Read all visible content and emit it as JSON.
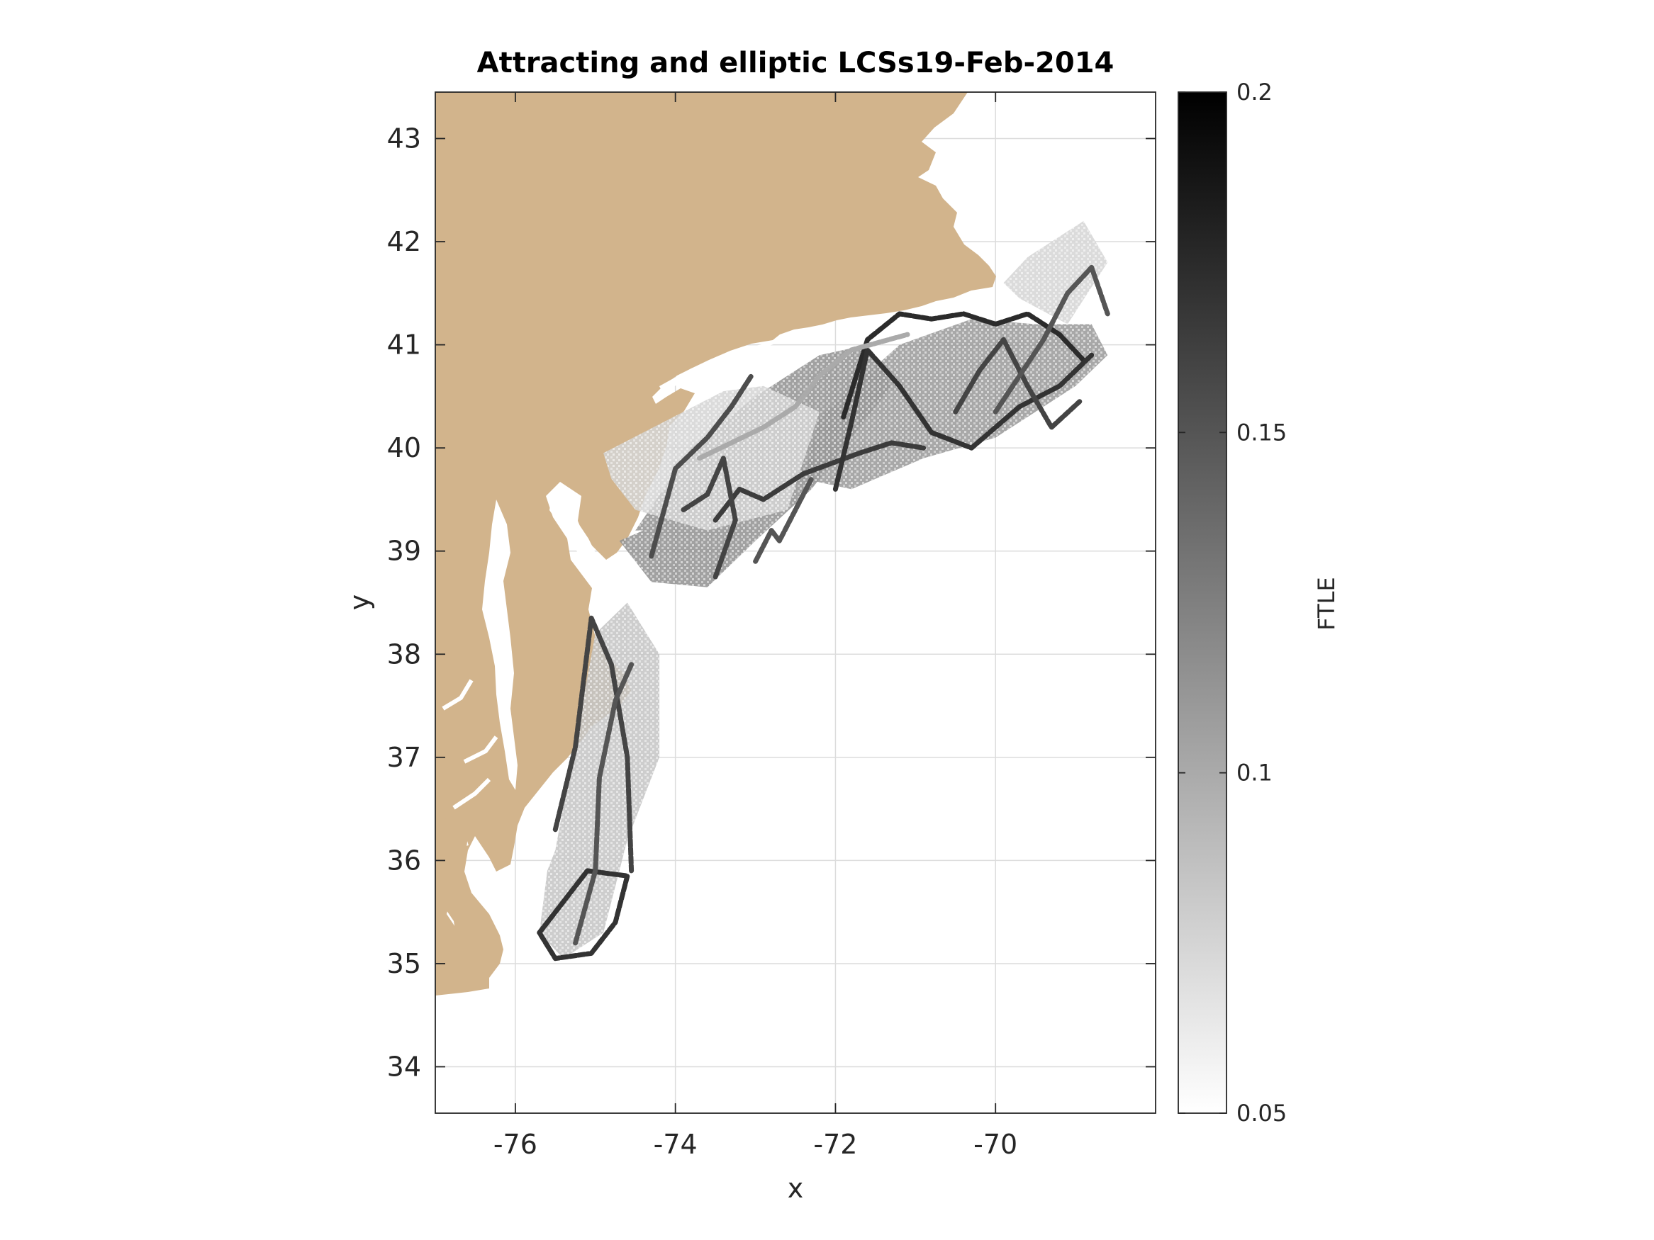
{
  "chart_data": {
    "type": "heatmap",
    "title": "Attracting and elliptic LCSs19-Feb-2014",
    "xlabel": "x",
    "ylabel": "y",
    "xlim": [
      -77,
      -68
    ],
    "ylim": [
      33.55,
      43.45
    ],
    "x_ticks": [
      -76,
      -74,
      -72,
      -70
    ],
    "x_tick_labels": [
      "-76",
      "-74",
      "-72",
      "-70"
    ],
    "y_ticks": [
      34,
      35,
      36,
      37,
      38,
      39,
      40,
      41,
      42,
      43
    ],
    "y_tick_labels": [
      "34",
      "35",
      "36",
      "37",
      "38",
      "39",
      "40",
      "41",
      "42",
      "43"
    ],
    "grid": true,
    "land_color": "#d2b48c",
    "colormap": "gray (white = low, black = high)",
    "colorbar": {
      "label": "FTLE",
      "limits": [
        0.05,
        0.2
      ],
      "ticks": [
        0.05,
        0.1,
        0.15,
        0.2
      ],
      "tick_labels": [
        "0.05",
        "0.1",
        "0.15",
        "0.2"
      ]
    },
    "ftle_regions": [
      {
        "x": [
          -74.5,
          -73.8,
          -73.0,
          -72.2,
          -71.6,
          -71.3,
          -72.3,
          -73.0,
          -73.6,
          -74.3,
          -74.7,
          -74.4
        ],
        "y": [
          39.2,
          40.0,
          40.5,
          40.9,
          41.0,
          40.6,
          39.6,
          39.1,
          38.65,
          38.7,
          39.1,
          39.2
        ],
        "ftle": 0.115
      },
      {
        "x": [
          -72.2,
          -71.2,
          -70.3,
          -69.5,
          -68.8,
          -68.6,
          -69.0,
          -70.0,
          -70.9,
          -71.8,
          -72.4
        ],
        "y": [
          40.3,
          41.0,
          41.25,
          41.2,
          41.2,
          40.9,
          40.6,
          40.1,
          39.9,
          39.6,
          39.7
        ],
        "ftle": 0.11
      },
      {
        "x": [
          -69.6,
          -68.9,
          -68.6,
          -69.1,
          -69.7,
          -69.9
        ],
        "y": [
          41.85,
          42.2,
          41.8,
          41.2,
          41.45,
          41.6
        ],
        "ftle": 0.075
      },
      {
        "x": [
          -75.5,
          -75.0,
          -74.6,
          -74.2,
          -74.2,
          -74.6,
          -74.9,
          -75.4,
          -75.7,
          -75.6
        ],
        "y": [
          36.1,
          38.2,
          38.5,
          38.0,
          37.0,
          36.2,
          35.3,
          35.05,
          35.3,
          35.9
        ],
        "ftle": 0.085
      },
      {
        "x": [
          -74.9,
          -73.4,
          -72.9,
          -72.2,
          -72.6,
          -73.6,
          -74.5,
          -74.8
        ],
        "y": [
          39.95,
          40.55,
          40.6,
          40.35,
          39.4,
          39.2,
          39.4,
          39.7
        ],
        "ftle": 0.075
      }
    ],
    "lcs_curves": [
      {
        "x": [
          -75.7,
          -75.1,
          -74.6,
          -74.75,
          -75.05,
          -75.5,
          -75.7
        ],
        "y": [
          35.3,
          35.9,
          35.85,
          35.4,
          35.1,
          35.05,
          35.3
        ],
        "ftle": 0.17
      },
      {
        "x": [
          -75.5,
          -75.25,
          -75.05,
          -74.8,
          -74.6,
          -74.55
        ],
        "y": [
          36.3,
          37.1,
          38.35,
          37.9,
          37.0,
          35.9
        ],
        "ftle": 0.16
      },
      {
        "x": [
          -75.25,
          -75.0,
          -74.95,
          -74.75,
          -74.55
        ],
        "y": [
          35.2,
          35.9,
          36.8,
          37.55,
          37.9
        ],
        "ftle": 0.15
      },
      {
        "x": [
          -73.5,
          -73.2,
          -72.9,
          -72.4,
          -71.7,
          -71.3,
          -70.9
        ],
        "y": [
          39.3,
          39.6,
          39.5,
          39.75,
          39.95,
          40.05,
          40.0
        ],
        "ftle": 0.165
      },
      {
        "x": [
          -74.3,
          -74.0,
          -73.6,
          -73.3,
          -73.05
        ],
        "y": [
          38.95,
          39.8,
          40.1,
          40.4,
          40.7
        ],
        "ftle": 0.155
      },
      {
        "x": [
          -71.9,
          -71.6,
          -71.2,
          -70.8,
          -70.4,
          -70.0,
          -69.6,
          -69.2,
          -68.9
        ],
        "y": [
          40.3,
          41.05,
          41.3,
          41.25,
          41.3,
          41.2,
          41.3,
          41.1,
          40.85
        ],
        "ftle": 0.175
      },
      {
        "x": [
          -72.0,
          -71.8,
          -71.6,
          -71.2,
          -70.8,
          -70.3,
          -69.7,
          -69.2,
          -68.8
        ],
        "y": [
          39.6,
          40.25,
          40.95,
          40.6,
          40.15,
          40.0,
          40.4,
          40.6,
          40.9
        ],
        "ftle": 0.17
      },
      {
        "x": [
          -70.5,
          -70.2,
          -69.9,
          -69.6,
          -69.3,
          -68.95
        ],
        "y": [
          40.35,
          40.75,
          41.05,
          40.6,
          40.2,
          40.45
        ],
        "ftle": 0.16
      },
      {
        "x": [
          -70.0,
          -69.7,
          -69.4,
          -69.1,
          -68.8,
          -68.6
        ],
        "y": [
          40.35,
          40.7,
          41.05,
          41.5,
          41.75,
          41.3
        ],
        "ftle": 0.15
      },
      {
        "x": [
          -73.9,
          -73.6,
          -73.4,
          -73.25,
          -73.5
        ],
        "y": [
          39.4,
          39.55,
          39.9,
          39.3,
          38.75
        ],
        "ftle": 0.16
      },
      {
        "x": [
          -73.0,
          -72.8,
          -72.7,
          -72.5,
          -72.3
        ],
        "y": [
          38.9,
          39.2,
          39.1,
          39.4,
          39.7
        ],
        "ftle": 0.15
      },
      {
        "x": [
          -73.7,
          -73.3,
          -72.9,
          -72.5,
          -72.2,
          -71.8,
          -71.1
        ],
        "y": [
          39.9,
          40.05,
          40.2,
          40.4,
          40.7,
          40.95,
          41.1
        ],
        "ftle": 0.1
      }
    ]
  }
}
